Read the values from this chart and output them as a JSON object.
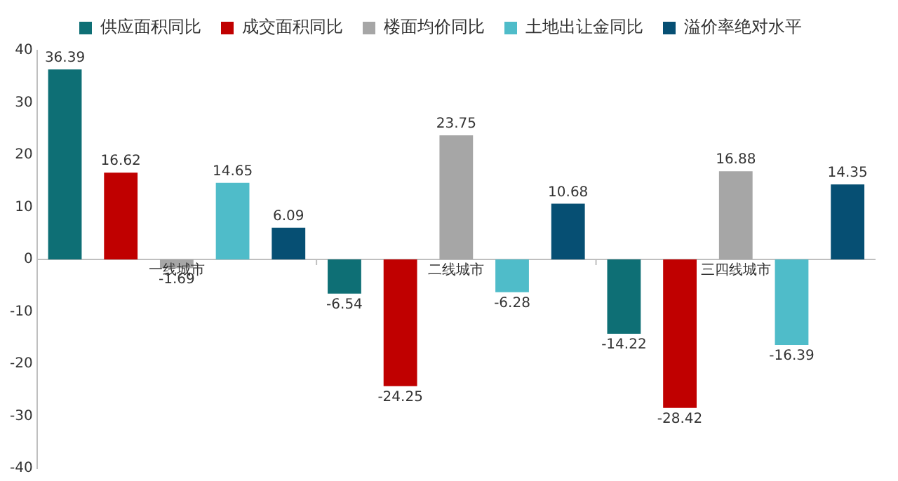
{
  "chart_data": {
    "type": "bar",
    "categories": [
      "一线城市",
      "二线城市",
      "三四线城市"
    ],
    "series": [
      {
        "name": "供应面积同比",
        "color": "#0e6f75",
        "values": [
          36.39,
          -6.54,
          -14.22
        ]
      },
      {
        "name": "成交面积同比",
        "color": "#c00000",
        "values": [
          16.62,
          -24.25,
          -28.42
        ]
      },
      {
        "name": "楼面均价同比",
        "color": "#a6a6a6",
        "values": [
          -1.69,
          23.75,
          16.88
        ]
      },
      {
        "name": "土地出让金同比",
        "color": "#4fbcc9",
        "values": [
          14.65,
          -6.28,
          -16.39
        ]
      },
      {
        "name": "溢价率绝对水平",
        "color": "#064f73",
        "values": [
          6.09,
          10.68,
          14.35
        ]
      }
    ],
    "ylim": [
      -40,
      40
    ],
    "yticks": [
      -40,
      -30,
      -20,
      -10,
      0,
      10,
      20,
      30,
      40
    ],
    "grid": false,
    "legend": "top",
    "data_labels": true
  }
}
